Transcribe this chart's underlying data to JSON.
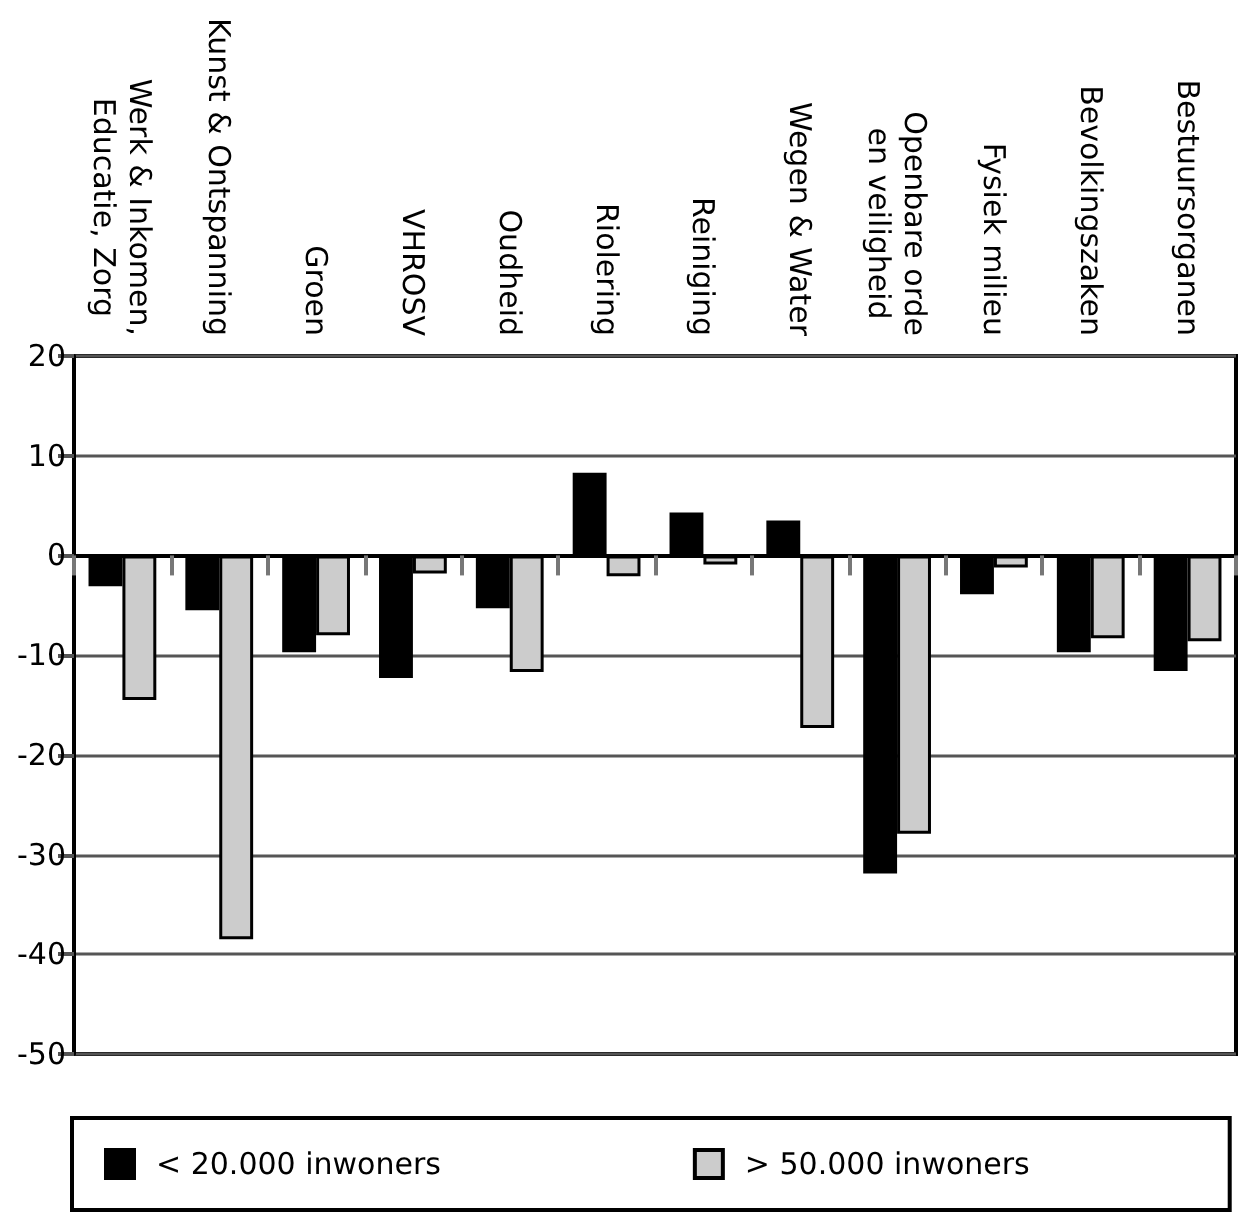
{
  "chart_data": {
    "type": "bar",
    "categories": [
      "Werk & Inkomen,\nEducatie, Zorg",
      "Kunst & Ontspanning",
      "Groen",
      "VHROSV",
      "Oudheid",
      "Riolering",
      "Reiniging",
      "Wegen & Water",
      "Openbare orde\nen veiligheid",
      "Fysiek milieu",
      "Bevolkingszaken",
      "Bestuursorganen"
    ],
    "series": [
      {
        "name": "< 20.000 inwoners",
        "color": "#000000",
        "values": [
          -3.1,
          -5.5,
          -9.7,
          -12.3,
          -5.3,
          8.3,
          4.3,
          3.5,
          -31.9,
          -3.9,
          -9.7,
          -11.6
        ]
      },
      {
        "name": "> 50.000 inwoners",
        "color": "#cccccc",
        "values": [
          -14.5,
          -38.5,
          -8.0,
          -1.8,
          -11.7,
          -2.1,
          -0.9,
          -17.3,
          -27.9,
          -1.2,
          -8.3,
          -8.6
        ]
      }
    ],
    "ylim": [
      -50,
      20
    ],
    "yticks": [
      -50,
      -40,
      -30,
      -20,
      -10,
      0,
      10,
      20
    ],
    "grid": "y",
    "legend": "bottom"
  }
}
